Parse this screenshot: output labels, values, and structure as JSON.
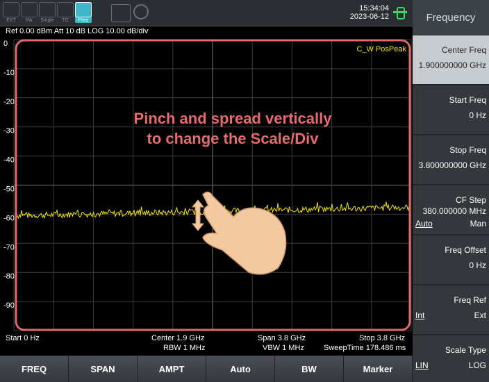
{
  "toolbar": {
    "icons": [
      "EXT",
      "PA",
      "Single",
      "TG",
      "Free"
    ],
    "time": "15:34:04",
    "date": "2023-06-12"
  },
  "info": "Ref 0.00 dBm  Att 10 dB  LOG 10.00 dB/div",
  "plot": {
    "y_labels": [
      "0",
      "-10",
      "-20",
      "-30",
      "-40",
      "-50",
      "-60",
      "-70",
      "-80",
      "-90"
    ],
    "detector": "C_W PosPeak",
    "hint_lines": [
      "Pinch and spread vertically",
      "to change the Scale/Div"
    ]
  },
  "bottom_info": {
    "start": "Start 0 Hz",
    "center": "Center 1.9 GHz",
    "rbw": "RBW 1 MHz",
    "span": "Span 3.8 GHz",
    "vbw": "VBW 1 MHz",
    "stop": "Stop 3.8 GHz",
    "sweep_time": "SweepTime 178.486 ms"
  },
  "softkeys": [
    "FREQ",
    "SPAN",
    "AMPT",
    "Auto",
    "BW",
    "Marker"
  ],
  "menu": {
    "title": "Frequency",
    "items": [
      {
        "label": "Center Freq",
        "value": "1.900000000 GHz"
      },
      {
        "label": "Start Freq",
        "value": "0 Hz"
      },
      {
        "label": "Stop Freq",
        "value": "3.800000000 GHz"
      },
      {
        "label": "CF Step",
        "value": "380.000000 MHz",
        "options": [
          "Auto",
          "Man"
        ]
      },
      {
        "label": "Freq Offset",
        "value": "0 Hz"
      },
      {
        "label": "Freq Ref",
        "options": [
          "Int",
          "Ext"
        ]
      },
      {
        "label": "Scale Type",
        "options": [
          "LIN",
          "LOG"
        ]
      }
    ]
  }
}
